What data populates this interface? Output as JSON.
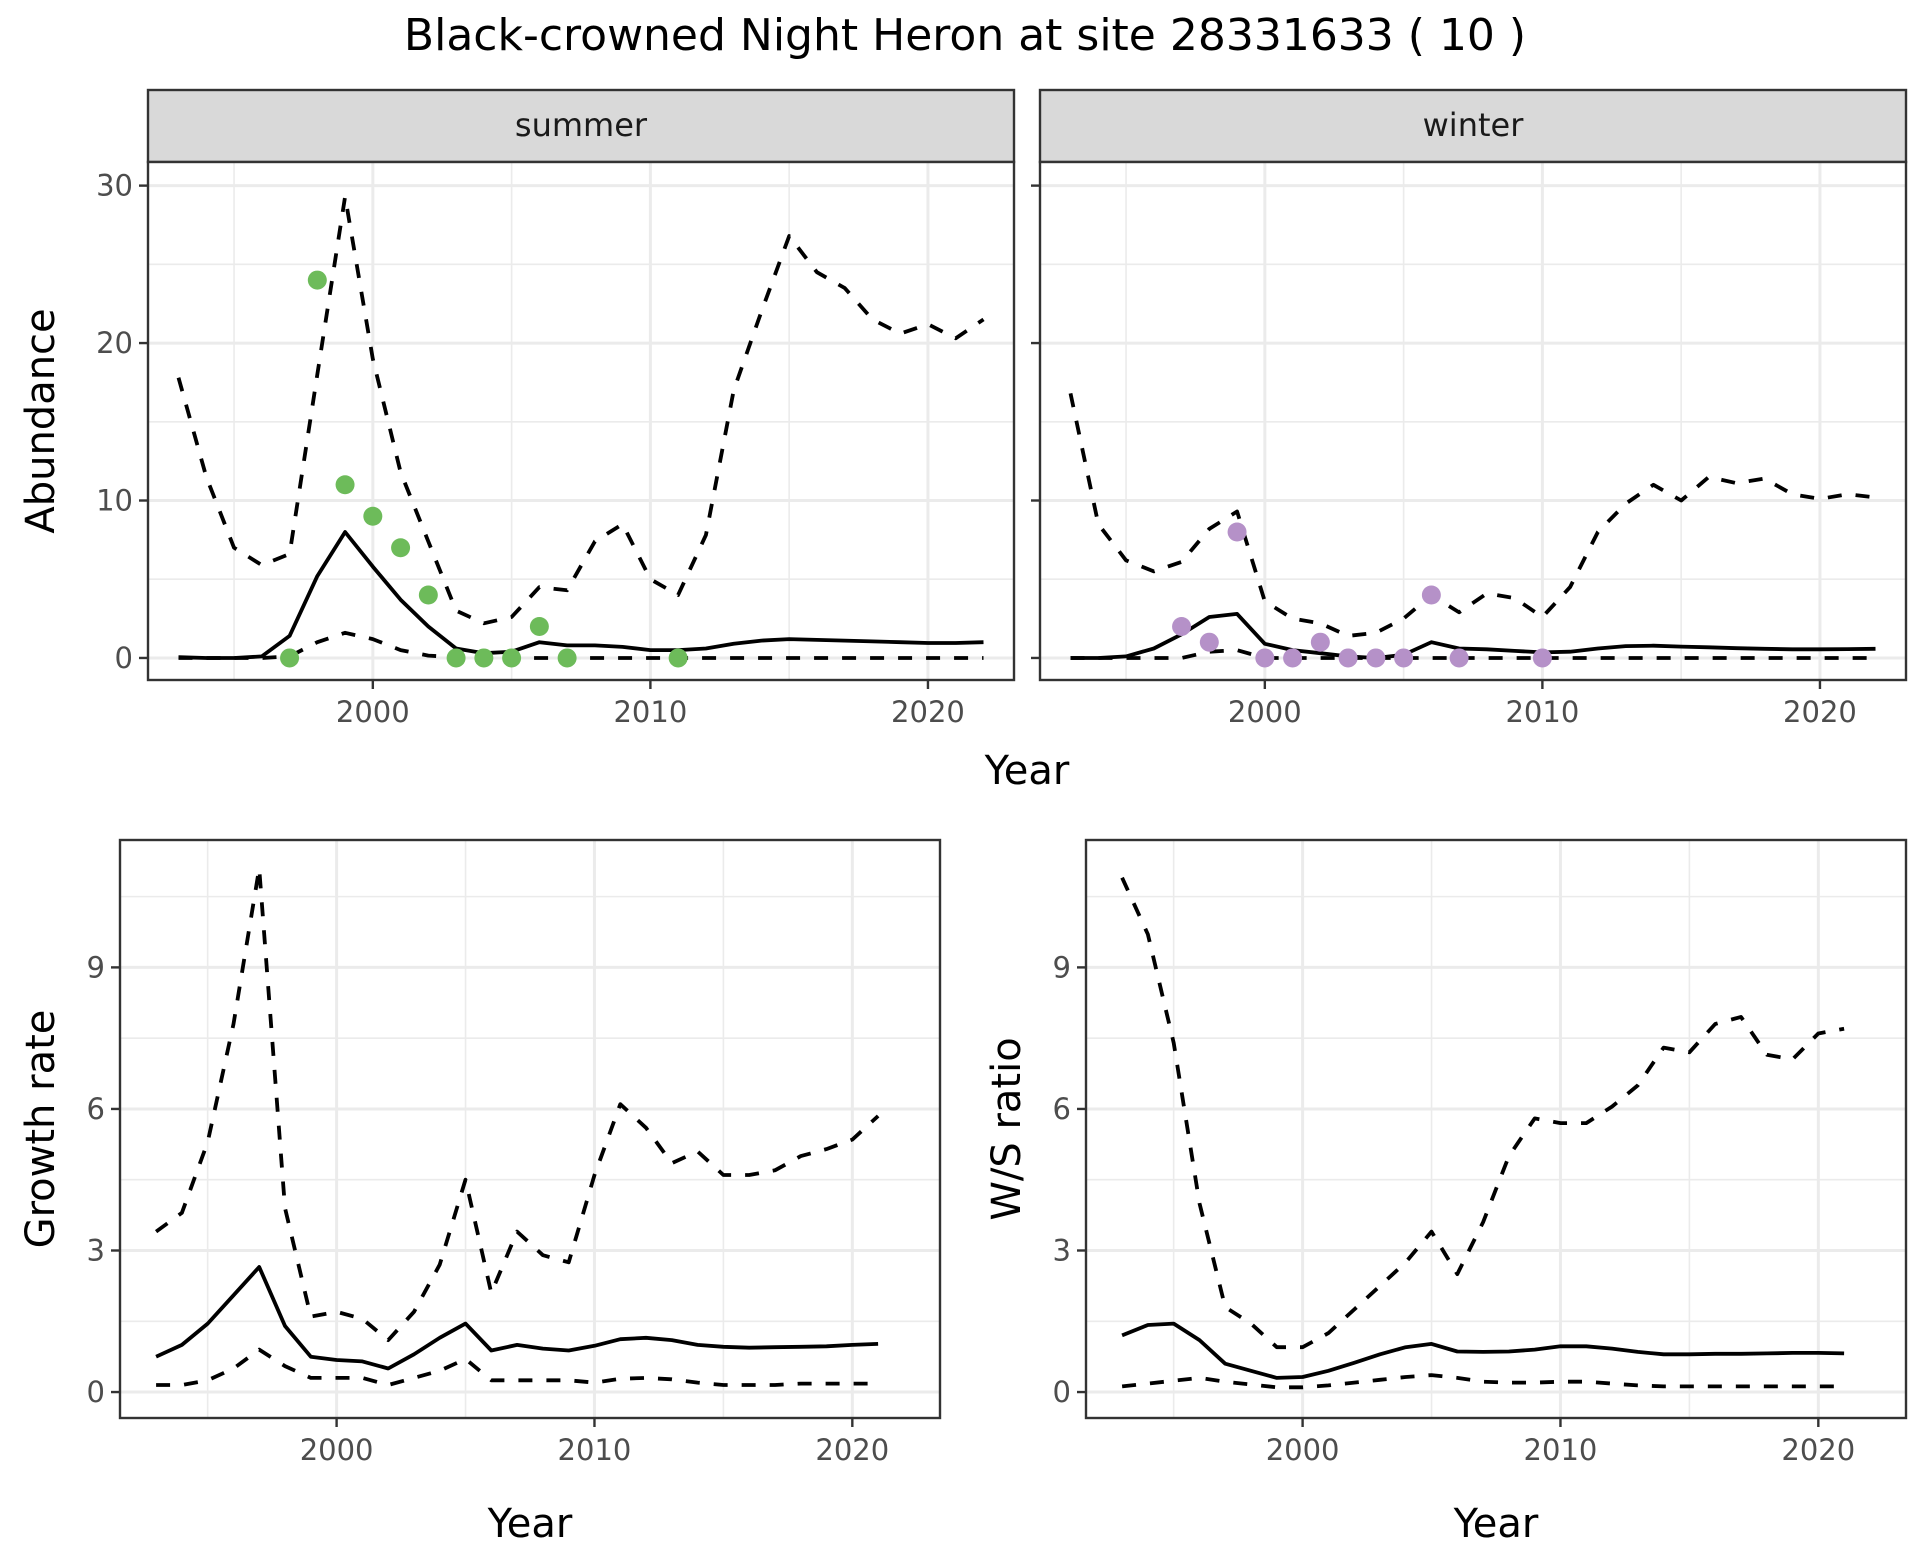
{
  "title": "Black-crowned Night Heron at site 28331633 ( 10 )",
  "chart_data": [
    {
      "type": "line",
      "panel": "summer",
      "facet_label": "summer",
      "xlabel": "Year",
      "ylabel": "Abundance",
      "xlim": [
        1991.9,
        2023.1
      ],
      "ylim": [
        -1.4,
        31.5
      ],
      "xticks": [
        2000,
        2010,
        2020
      ],
      "yticks": [
        0,
        10,
        20,
        30
      ],
      "grid": true,
      "point_color": "#6dbb5a",
      "x": [
        1993,
        1994,
        1995,
        1996,
        1997,
        1998,
        1999,
        2000,
        2001,
        2002,
        2003,
        2004,
        2005,
        2006,
        2007,
        2008,
        2009,
        2010,
        2011,
        2012,
        2013,
        2014,
        2015,
        2016,
        2017,
        2018,
        2019,
        2020,
        2021,
        2022
      ],
      "series": [
        {
          "name": "upper",
          "style": "dashed",
          "values": [
            17.8,
            11.5,
            7.0,
            5.9,
            6.6,
            18.0,
            29.3,
            19.0,
            11.8,
            7.4,
            3.0,
            2.2,
            2.6,
            4.5,
            4.3,
            7.4,
            8.5,
            5.0,
            4.0,
            7.8,
            17.0,
            22.0,
            26.8,
            24.5,
            23.5,
            21.5,
            20.6,
            21.2,
            20.3,
            21.5
          ]
        },
        {
          "name": "mean",
          "style": "solid",
          "values": [
            0.05,
            0.0,
            0.0,
            0.1,
            1.4,
            5.2,
            8.0,
            5.8,
            3.7,
            2.0,
            0.6,
            0.3,
            0.4,
            1.0,
            0.8,
            0.8,
            0.7,
            0.5,
            0.5,
            0.6,
            0.9,
            1.1,
            1.2,
            1.15,
            1.1,
            1.05,
            1.0,
            0.95,
            0.95,
            1.0
          ]
        },
        {
          "name": "lower",
          "style": "dashed",
          "values": [
            0,
            0,
            0,
            0,
            0.1,
            1.0,
            1.6,
            1.2,
            0.5,
            0.15,
            0.05,
            0,
            0,
            0,
            0,
            0,
            0,
            0,
            0,
            0,
            0,
            0,
            0,
            0,
            0,
            0,
            0,
            0,
            0,
            0
          ]
        }
      ],
      "points": {
        "x": [
          1997,
          1998,
          1999,
          2000,
          2001,
          2002,
          2003,
          2004,
          2005,
          2006,
          2007,
          2011
        ],
        "y": [
          0,
          24,
          11,
          9,
          7,
          4,
          0,
          0,
          0,
          2,
          0,
          0
        ]
      }
    },
    {
      "type": "line",
      "panel": "winter",
      "facet_label": "winter",
      "xlabel": "Year",
      "ylabel": "Abundance",
      "xlim": [
        1991.9,
        2023.1
      ],
      "ylim": [
        -1.4,
        31.5
      ],
      "xticks": [
        2000,
        2010,
        2020
      ],
      "yticks": [
        0,
        10,
        20,
        30
      ],
      "grid": true,
      "point_color": "#b591c8",
      "x": [
        1993,
        1994,
        1995,
        1996,
        1997,
        1998,
        1999,
        2000,
        2001,
        2002,
        2003,
        2004,
        2005,
        2006,
        2007,
        2008,
        2009,
        2010,
        2011,
        2012,
        2013,
        2014,
        2015,
        2016,
        2017,
        2018,
        2019,
        2020,
        2021,
        2022
      ],
      "series": [
        {
          "name": "upper",
          "style": "dashed",
          "values": [
            16.8,
            8.5,
            6.2,
            5.5,
            6.1,
            8.2,
            9.3,
            3.6,
            2.5,
            2.2,
            1.4,
            1.6,
            2.5,
            4.0,
            2.9,
            4.1,
            3.8,
            2.6,
            4.5,
            8.0,
            9.8,
            11.0,
            10.0,
            11.5,
            11.1,
            11.4,
            10.4,
            10.1,
            10.4,
            10.2
          ]
        },
        {
          "name": "mean",
          "style": "solid",
          "values": [
            0,
            0,
            0.1,
            0.6,
            1.5,
            2.6,
            2.8,
            0.9,
            0.5,
            0.3,
            0.1,
            0.0,
            0.2,
            1.0,
            0.6,
            0.55,
            0.45,
            0.35,
            0.4,
            0.6,
            0.75,
            0.78,
            0.72,
            0.68,
            0.62,
            0.58,
            0.55,
            0.55,
            0.56,
            0.58
          ]
        },
        {
          "name": "lower",
          "style": "dashed",
          "values": [
            0,
            0,
            0,
            0,
            0,
            0.4,
            0.5,
            0,
            0,
            0,
            0,
            0,
            0,
            0,
            0,
            0,
            0,
            0,
            0,
            0,
            0,
            0,
            0,
            0,
            0,
            0,
            0,
            0,
            0,
            0
          ]
        }
      ],
      "points": {
        "x": [
          1997,
          1998,
          1999,
          2000,
          2001,
          2002,
          2003,
          2004,
          2005,
          2006,
          2007,
          2010
        ],
        "y": [
          2,
          1,
          8,
          0,
          0,
          1,
          0,
          0,
          0,
          4,
          0,
          0
        ]
      }
    },
    {
      "type": "line",
      "panel": "growth",
      "xlabel": "Year",
      "ylabel": "Growth rate",
      "xlim": [
        1991.6,
        2023.4
      ],
      "ylim": [
        -0.55,
        11.7
      ],
      "xticks": [
        2000,
        2010,
        2020
      ],
      "yticks": [
        0,
        3,
        6,
        9
      ],
      "grid": true,
      "x": [
        1993,
        1994,
        1995,
        1996,
        1997,
        1998,
        1999,
        2000,
        2001,
        2002,
        2003,
        2004,
        2005,
        2006,
        2007,
        2008,
        2009,
        2010,
        2011,
        2012,
        2013,
        2014,
        2015,
        2016,
        2017,
        2018,
        2019,
        2020,
        2021
      ],
      "series": [
        {
          "name": "upper",
          "style": "dashed",
          "values": [
            3.4,
            3.8,
            5.3,
            7.8,
            11.1,
            3.9,
            1.6,
            1.7,
            1.55,
            1.1,
            1.7,
            2.7,
            4.5,
            2.1,
            3.4,
            2.9,
            2.75,
            4.6,
            6.1,
            5.6,
            4.85,
            5.1,
            4.6,
            4.6,
            4.7,
            5.0,
            5.15,
            5.35,
            5.85
          ]
        },
        {
          "name": "mean",
          "style": "solid",
          "values": [
            0.75,
            1.0,
            1.45,
            2.05,
            2.65,
            1.4,
            0.75,
            0.68,
            0.65,
            0.5,
            0.8,
            1.15,
            1.45,
            0.88,
            1.0,
            0.92,
            0.88,
            0.98,
            1.12,
            1.15,
            1.1,
            1.0,
            0.96,
            0.94,
            0.95,
            0.96,
            0.97,
            1.0,
            1.02
          ]
        },
        {
          "name": "lower",
          "style": "dashed",
          "values": [
            0.15,
            0.15,
            0.25,
            0.5,
            0.9,
            0.55,
            0.3,
            0.3,
            0.3,
            0.15,
            0.3,
            0.45,
            0.7,
            0.25,
            0.25,
            0.25,
            0.25,
            0.2,
            0.28,
            0.3,
            0.27,
            0.2,
            0.15,
            0.15,
            0.15,
            0.18,
            0.18,
            0.18,
            0.18
          ]
        }
      ]
    },
    {
      "type": "line",
      "panel": "ws_ratio",
      "xlabel": "Year",
      "ylabel": "W/S ratio",
      "xlim": [
        1991.6,
        2023.4
      ],
      "ylim": [
        -0.55,
        11.7
      ],
      "xticks": [
        2000,
        2010,
        2020
      ],
      "yticks": [
        0,
        3,
        6,
        9
      ],
      "grid": true,
      "x": [
        1993,
        1994,
        1995,
        1996,
        1997,
        1998,
        1999,
        2000,
        2001,
        2002,
        2003,
        2004,
        2005,
        2006,
        2007,
        2008,
        2009,
        2010,
        2011,
        2012,
        2013,
        2014,
        2015,
        2016,
        2017,
        2018,
        2019,
        2020,
        2021
      ],
      "series": [
        {
          "name": "upper",
          "style": "dashed",
          "values": [
            10.9,
            9.7,
            7.4,
            4.0,
            1.8,
            1.45,
            0.95,
            0.95,
            1.25,
            1.75,
            2.25,
            2.75,
            3.4,
            2.5,
            3.6,
            5.0,
            5.8,
            5.7,
            5.7,
            6.05,
            6.5,
            7.3,
            7.2,
            7.8,
            7.95,
            7.15,
            7.05,
            7.6,
            7.7
          ]
        },
        {
          "name": "mean",
          "style": "solid",
          "values": [
            1.2,
            1.42,
            1.45,
            1.1,
            0.6,
            0.45,
            0.3,
            0.32,
            0.45,
            0.62,
            0.8,
            0.95,
            1.02,
            0.86,
            0.85,
            0.86,
            0.9,
            0.97,
            0.97,
            0.92,
            0.85,
            0.8,
            0.8,
            0.81,
            0.81,
            0.82,
            0.83,
            0.83,
            0.82
          ]
        },
        {
          "name": "lower",
          "style": "dashed",
          "values": [
            0.12,
            0.18,
            0.24,
            0.3,
            0.22,
            0.16,
            0.1,
            0.1,
            0.14,
            0.2,
            0.26,
            0.32,
            0.36,
            0.3,
            0.22,
            0.2,
            0.2,
            0.22,
            0.22,
            0.18,
            0.14,
            0.12,
            0.12,
            0.12,
            0.12,
            0.12,
            0.12,
            0.12,
            0.12
          ]
        }
      ]
    }
  ]
}
